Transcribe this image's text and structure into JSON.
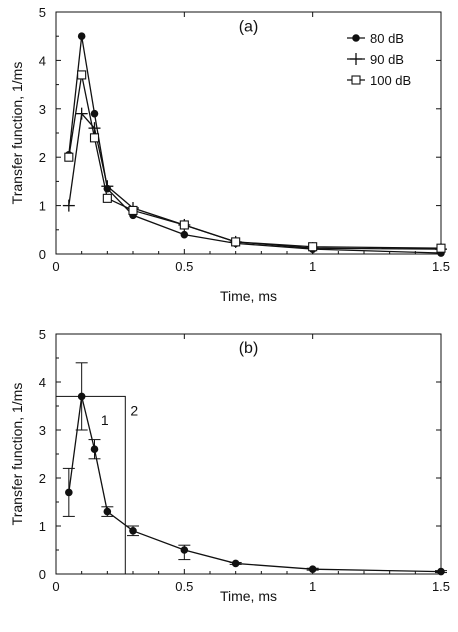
{
  "chart_data": [
    {
      "type": "line",
      "panel_label": "(a)",
      "xlabel": "Time, ms",
      "ylabel": "Transfer function, 1/ms",
      "xlim": [
        0,
        1.5
      ],
      "ylim": [
        0,
        5
      ],
      "xticks": [
        0,
        0.5,
        1,
        1.5
      ],
      "xtick_labels": [
        "0",
        "0.5",
        "1",
        "1.5"
      ],
      "yticks": [
        0,
        1,
        2,
        3,
        4,
        5
      ],
      "ytick_labels": [
        "0",
        "1",
        "2",
        "3",
        "4",
        "5"
      ],
      "legend_position": "top-right",
      "series": [
        {
          "name": "80 dB",
          "marker": "filled-circle",
          "x": [
            0.05,
            0.1,
            0.15,
            0.2,
            0.3,
            0.5,
            0.7,
            1.0,
            1.5
          ],
          "y": [
            2.05,
            4.5,
            2.9,
            1.35,
            0.8,
            0.4,
            0.22,
            0.1,
            0.02
          ]
        },
        {
          "name": "90 dB",
          "marker": "plus",
          "x": [
            0.05,
            0.1,
            0.15,
            0.2,
            0.3,
            0.5,
            0.7,
            1.0,
            1.5
          ],
          "y": [
            1.0,
            2.9,
            2.6,
            1.4,
            0.95,
            0.6,
            0.25,
            0.12,
            0.1
          ]
        },
        {
          "name": "100 dB",
          "marker": "open-square",
          "x": [
            0.05,
            0.1,
            0.15,
            0.2,
            0.3,
            0.5,
            0.7,
            1.0,
            1.5
          ],
          "y": [
            2.0,
            3.7,
            2.4,
            1.15,
            0.9,
            0.6,
            0.25,
            0.15,
            0.12
          ]
        }
      ]
    },
    {
      "type": "line",
      "panel_label": "(b)",
      "xlabel": "Time, ms",
      "ylabel": "Transfer function, 1/ms",
      "xlim": [
        0,
        1.5
      ],
      "ylim": [
        0,
        5
      ],
      "xticks": [
        0,
        0.5,
        1,
        1.5
      ],
      "xtick_labels": [
        "0",
        "0.5",
        "1",
        "1.5"
      ],
      "yticks": [
        0,
        1,
        2,
        3,
        4,
        5
      ],
      "ytick_labels": [
        "0",
        "1",
        "2",
        "3",
        "4",
        "5"
      ],
      "series": [
        {
          "name": "",
          "marker": "filled-circle",
          "x": [
            0.05,
            0.1,
            0.15,
            0.2,
            0.3,
            0.5,
            0.7,
            1.0,
            1.5
          ],
          "y": [
            1.7,
            3.7,
            2.6,
            1.3,
            0.9,
            0.5,
            0.22,
            0.1,
            0.05
          ],
          "error_low": [
            1.2,
            3.0,
            2.4,
            1.2,
            0.8,
            0.3,
            0.2,
            0.08,
            0.03
          ],
          "error_high": [
            2.2,
            4.4,
            2.8,
            1.4,
            1.0,
            0.6,
            0.24,
            0.12,
            0.07
          ]
        }
      ],
      "annotations": [
        {
          "text": "1",
          "x": 0.19,
          "y": 3.1
        },
        {
          "text": "2",
          "x": 0.305,
          "y": 3.3
        }
      ],
      "rect_model": {
        "x_end": 0.27,
        "height": 3.7
      }
    }
  ]
}
